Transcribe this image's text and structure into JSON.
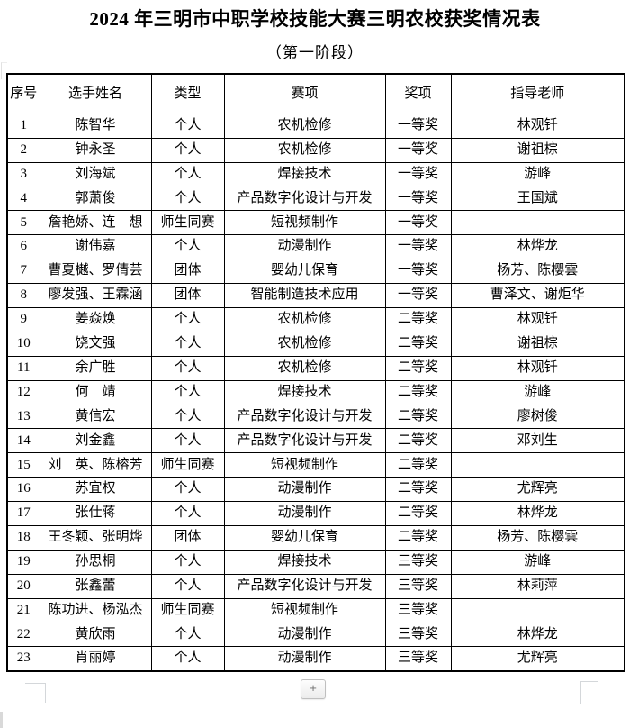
{
  "title": "2024 年三明市中职学校技能大赛三明农校获奖情况表",
  "subtitle": "（第一阶段）",
  "table": {
    "headers": [
      "序号",
      "选手姓名",
      "类型",
      "赛项",
      "奖项",
      "指导老师"
    ],
    "column_keys": [
      "index",
      "name",
      "type",
      "event",
      "award",
      "teacher"
    ],
    "rows": [
      [
        "1",
        "陈智华",
        "个人",
        "农机检修",
        "一等奖",
        "林观钎"
      ],
      [
        "2",
        "钟永圣",
        "个人",
        "农机检修",
        "一等奖",
        "谢祖棕"
      ],
      [
        "3",
        "刘海斌",
        "个人",
        "焊接技术",
        "一等奖",
        "游峰"
      ],
      [
        "4",
        "郭萧俊",
        "个人",
        "产品数字化设计与开发",
        "一等奖",
        "王国斌"
      ],
      [
        "5",
        "詹艳娇、连　想",
        "师生同赛",
        "短视频制作",
        "一等奖",
        ""
      ],
      [
        "6",
        "谢伟嘉",
        "个人",
        "动漫制作",
        "一等奖",
        "林烨龙"
      ],
      [
        "7",
        "曹夏樾、罗倩芸",
        "团体",
        "婴幼儿保育",
        "一等奖",
        "杨芳、陈樱雲"
      ],
      [
        "8",
        "廖发强、王霖涵",
        "团体",
        "智能制造技术应用",
        "一等奖",
        "曹泽文、谢炬华"
      ],
      [
        "9",
        "姜焱焕",
        "个人",
        "农机检修",
        "二等奖",
        "林观钎"
      ],
      [
        "10",
        "饶文强",
        "个人",
        "农机检修",
        "二等奖",
        "谢祖棕"
      ],
      [
        "11",
        "余广胜",
        "个人",
        "农机检修",
        "二等奖",
        "林观钎"
      ],
      [
        "12",
        "何　靖",
        "个人",
        "焊接技术",
        "二等奖",
        "游峰"
      ],
      [
        "13",
        "黄信宏",
        "个人",
        "产品数字化设计与开发",
        "二等奖",
        "廖树俊"
      ],
      [
        "14",
        "刘金鑫",
        "个人",
        "产品数字化设计与开发",
        "二等奖",
        "邓刘生"
      ],
      [
        "15",
        "刘　英、陈榕芳",
        "师生同赛",
        "短视频制作",
        "二等奖",
        ""
      ],
      [
        "16",
        "苏宜权",
        "个人",
        "动漫制作",
        "二等奖",
        "尤辉亮"
      ],
      [
        "17",
        "张仕蒋",
        "个人",
        "动漫制作",
        "二等奖",
        "林烨龙"
      ],
      [
        "18",
        "王冬颖、张明烨",
        "团体",
        "婴幼儿保育",
        "二等奖",
        "杨芳、陈樱雲"
      ],
      [
        "19",
        "孙思桐",
        "个人",
        "焊接技术",
        "三等奖",
        "游峰"
      ],
      [
        "20",
        "张鑫蕾",
        "个人",
        "产品数字化设计与开发",
        "三等奖",
        "林莉萍"
      ],
      [
        "21",
        "陈功进、杨泓杰",
        "师生同赛",
        "短视频制作",
        "三等奖",
        ""
      ],
      [
        "22",
        "黄欣雨",
        "个人",
        "动漫制作",
        "三等奖",
        "林烨龙"
      ],
      [
        "23",
        "肖丽婷",
        "个人",
        "动漫制作",
        "三等奖",
        "尤辉亮"
      ]
    ]
  },
  "controls": {
    "plus_label": "+"
  },
  "colors": {
    "border": "#000000",
    "text": "#000000",
    "page_bg": "#ffffff",
    "mark": "#d4d7da"
  }
}
